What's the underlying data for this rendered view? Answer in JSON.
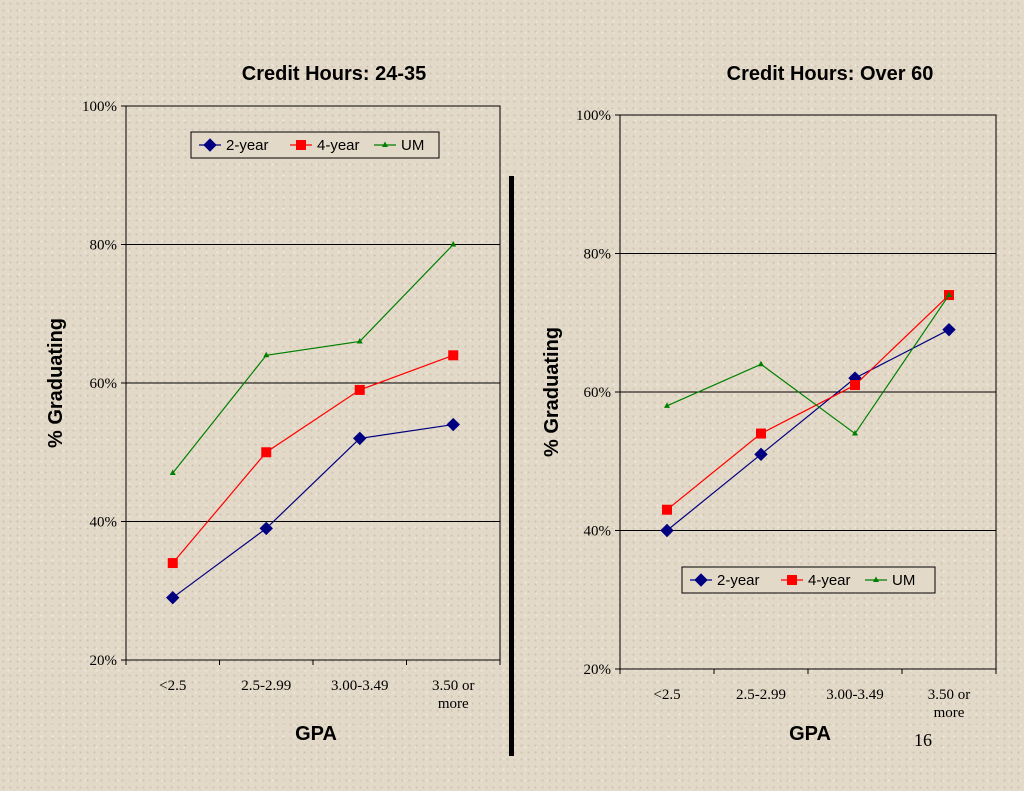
{
  "page_number": "16",
  "colors": {
    "2-year": "#000080",
    "4-year": "#ff0000",
    "UM": "#008000"
  },
  "chart_data": [
    {
      "type": "line",
      "title": "Credit Hours:  24-35",
      "xlabel": "GPA",
      "ylabel": "% Graduating",
      "ylim": [
        20,
        100
      ],
      "yticks": [
        "20%",
        "40%",
        "60%",
        "80%",
        "100%"
      ],
      "categories": [
        [
          "<2.5"
        ],
        [
          "2.5-2.99"
        ],
        [
          "3.00-3.49"
        ],
        [
          "3.50 or",
          "more"
        ]
      ],
      "grid": true,
      "legend_position": "top",
      "series": [
        {
          "name": "2-year",
          "values": [
            29,
            39,
            52,
            54
          ]
        },
        {
          "name": "4-year",
          "values": [
            34,
            50,
            59,
            64
          ]
        },
        {
          "name": "UM",
          "values": [
            47,
            64,
            66,
            80
          ]
        }
      ]
    },
    {
      "type": "line",
      "title": "Credit Hours:  Over 60",
      "xlabel": "GPA",
      "ylabel": "% Graduating",
      "ylim": [
        20,
        100
      ],
      "yticks": [
        "20%",
        "40%",
        "60%",
        "80%",
        "100%"
      ],
      "categories": [
        [
          "<2.5"
        ],
        [
          "2.5-2.99"
        ],
        [
          "3.00-3.49"
        ],
        [
          "3.50 or",
          "more"
        ]
      ],
      "grid": true,
      "legend_position": "bottom",
      "series": [
        {
          "name": "2-year",
          "values": [
            40,
            51,
            62,
            69
          ]
        },
        {
          "name": "4-year",
          "values": [
            43,
            54,
            61,
            74
          ]
        },
        {
          "name": "UM",
          "values": [
            58,
            64,
            54,
            74
          ]
        }
      ]
    }
  ]
}
